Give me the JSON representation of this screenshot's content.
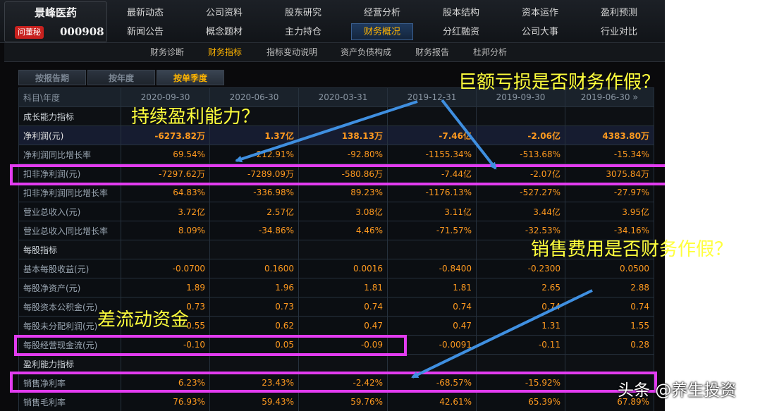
{
  "company": {
    "name": "景峰医药",
    "ask_label": "问董秘",
    "code": "000908"
  },
  "nav": {
    "row1": [
      "最新动态",
      "公司资料",
      "股东研究",
      "经营分析",
      "股本结构",
      "资本运作",
      "盈利预测"
    ],
    "row2": [
      "新闻公告",
      "概念题材",
      "主力持仓",
      "财务概况",
      "分红融资",
      "公司大事",
      "行业对比"
    ],
    "active": "财务概况"
  },
  "subnav": {
    "items": [
      "财务诊断",
      "财务指标",
      "指标变动说明",
      "资产负债构成",
      "财务报告",
      "杜邦分析"
    ],
    "active": "财务指标"
  },
  "tabs": {
    "items": [
      "按报告期",
      "按年度",
      "按单季度"
    ],
    "active": "按单季度"
  },
  "table": {
    "header_label": "科目\\年度",
    "periods": [
      "2020-09-30",
      "2020-06-30",
      "2020-03-31",
      "2019-12-31",
      "2019-09-30",
      "2019-06-30"
    ],
    "more_icon": "»",
    "rows": [
      {
        "type": "section",
        "label": "成长能力指标"
      },
      {
        "type": "hl",
        "label": "净利润(元)",
        "values": [
          "-6273.82万",
          "1.37亿",
          "138.13万",
          "-7.46亿",
          "-2.06亿",
          "4383.80万"
        ]
      },
      {
        "type": "row",
        "label": "净利润同比增长率",
        "values": [
          "69.54%",
          "212.91%",
          "-92.80%",
          "-1155.34%",
          "-513.68%",
          "-15.34%"
        ]
      },
      {
        "type": "row",
        "label": "扣非净利润(元)",
        "values": [
          "-7297.62万",
          "-7289.09万",
          "-580.86万",
          "-7.44亿",
          "-2.07亿",
          "3075.84万"
        ]
      },
      {
        "type": "row",
        "label": "扣非净利润同比增长率",
        "values": [
          "64.83%",
          "-336.98%",
          "89.23%",
          "-1176.13%",
          "-527.27%",
          "-27.97%"
        ]
      },
      {
        "type": "row",
        "label": "营业总收入(元)",
        "values": [
          "3.72亿",
          "2.57亿",
          "3.08亿",
          "3.11亿",
          "3.44亿",
          "3.95亿"
        ]
      },
      {
        "type": "row",
        "label": "营业总收入同比增长率",
        "values": [
          "8.09%",
          "-34.86%",
          "4.46%",
          "-71.57%",
          "-32.53%",
          "-34.16%"
        ]
      },
      {
        "type": "section",
        "label": "每股指标"
      },
      {
        "type": "row",
        "label": "基本每股收益(元)",
        "values": [
          "-0.0700",
          "0.1600",
          "0.0016",
          "-0.8400",
          "-0.2300",
          "0.0500"
        ]
      },
      {
        "type": "row",
        "label": "每股净资产(元)",
        "values": [
          "1.89",
          "1.96",
          "1.81",
          "1.81",
          "2.65",
          "2.88"
        ]
      },
      {
        "type": "row",
        "label": "每股资本公积金(元)",
        "values": [
          "0.73",
          "0.73",
          "0.74",
          "0.74",
          "0.74",
          "0.74"
        ]
      },
      {
        "type": "row",
        "label": "每股未分配利润(元)",
        "values": [
          "0.55",
          "0.62",
          "0.47",
          "0.47",
          "1.31",
          "1.55"
        ]
      },
      {
        "type": "row",
        "label": "每股经营现金流(元)",
        "values": [
          "-0.10",
          "0.05",
          "-0.09",
          "-0.0091",
          "-0.11",
          "0.28"
        ]
      },
      {
        "type": "section",
        "label": "盈利能力指标"
      },
      {
        "type": "row",
        "label": "销售净利率",
        "values": [
          "6.23%",
          "23.43%",
          "-2.42%",
          "-68.57%",
          "-15.92%",
          ""
        ]
      },
      {
        "type": "row",
        "label": "销售毛利率",
        "values": [
          "76.93%",
          "59.43%",
          "59.76%",
          "42.61%",
          "65.39%",
          "67.89%"
        ]
      }
    ]
  },
  "annotations": {
    "loss_fraud": "巨额亏损是否财务作假？",
    "sustained_profit": "持续盈利能力？",
    "selling_expense": "销售费用是否财务作假？",
    "poor_cashflow": "差流动资金"
  },
  "watermark": "头条 @养生投资",
  "colors": {
    "highlight": "#e23cf0",
    "annotation_text": "#ffff3c",
    "arrow": "#3f8fe0",
    "value_text": "#ff9a1f",
    "active_tab": "#ffb400"
  }
}
